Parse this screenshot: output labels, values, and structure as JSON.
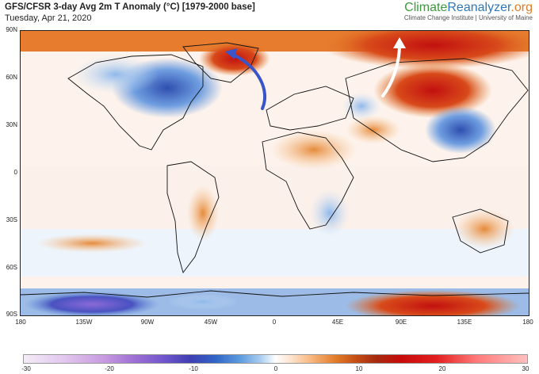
{
  "header": {
    "title": "GFS/CFSR 3-day Avg 2m T Anomaly (°C) [1979-2000 base]",
    "date": "Tuesday, Apr 21, 2020"
  },
  "brand": {
    "name_part1": "Climate",
    "name_part2": "Reanalyzer",
    "name_part3": ".org",
    "subtitle": "Climate Change Institute | University of Maine"
  },
  "map": {
    "lat_labels": [
      "90N",
      "60N",
      "30N",
      "0",
      "30S",
      "60S",
      "90S"
    ],
    "lon_labels": [
      "180",
      "135W",
      "90W",
      "45W",
      "0",
      "45E",
      "90E",
      "135E",
      "180"
    ],
    "arrows": [
      {
        "name": "cold-air-arrow",
        "color": "#3a55c8"
      },
      {
        "name": "warm-air-arrow",
        "color": "#ffffff"
      }
    ]
  },
  "colorbar": {
    "ticks": [
      "-30",
      "-20",
      "-10",
      "0",
      "10",
      "20",
      "30"
    ],
    "range": [
      -30,
      30
    ]
  }
}
